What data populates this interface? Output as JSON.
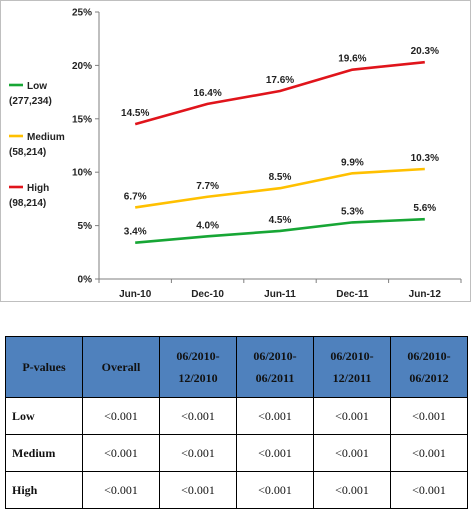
{
  "chart_data": {
    "type": "line",
    "categories": [
      "Jun-10",
      "Dec-10",
      "Jun-11",
      "Dec-11",
      "Jun-12"
    ],
    "yticks": [
      "0%",
      "5%",
      "10%",
      "15%",
      "20%",
      "25%"
    ],
    "ylim": [
      0,
      25
    ],
    "title": "",
    "xlabel": "",
    "ylabel": "",
    "grid": false,
    "legend_position": "left",
    "series": [
      {
        "name": "Low",
        "count": "(277,234)",
        "color": "#17a635",
        "values": [
          3.4,
          4.0,
          4.5,
          5.3,
          5.6
        ],
        "labels": [
          "3.4%",
          "4.0%",
          "4.5%",
          "5.3%",
          "5.6%"
        ]
      },
      {
        "name": "Medium",
        "count": "(58,214)",
        "color": "#ffc000",
        "values": [
          6.7,
          7.7,
          8.5,
          9.9,
          10.3
        ],
        "labels": [
          "6.7%",
          "7.7%",
          "8.5%",
          "9.9%",
          "10.3%"
        ]
      },
      {
        "name": "High",
        "count": "(98,214)",
        "color": "#e0141b",
        "values": [
          14.5,
          16.4,
          17.6,
          19.6,
          20.3
        ],
        "labels": [
          "14.5%",
          "16.4%",
          "17.6%",
          "19.6%",
          "20.3%"
        ]
      }
    ]
  },
  "table": {
    "headers": [
      [
        "P-values"
      ],
      [
        "Overall"
      ],
      [
        "06/2010-",
        "12/2010"
      ],
      [
        "06/2010-",
        "06/2011"
      ],
      [
        "06/2010-",
        "12/2011"
      ],
      [
        "06/2010-",
        "06/2012"
      ]
    ],
    "header_color": "#4f81bd",
    "rows": [
      {
        "label": "Low",
        "cells": [
          "<0.001",
          "<0.001",
          "<0.001",
          "<0.001",
          "<0.001"
        ]
      },
      {
        "label": "Medium",
        "cells": [
          "<0.001",
          "<0.001",
          "<0.001",
          "<0.001",
          "<0.001"
        ]
      },
      {
        "label": "High",
        "cells": [
          "<0.001",
          "<0.001",
          "<0.001",
          "<0.001",
          "<0.001"
        ]
      }
    ]
  }
}
